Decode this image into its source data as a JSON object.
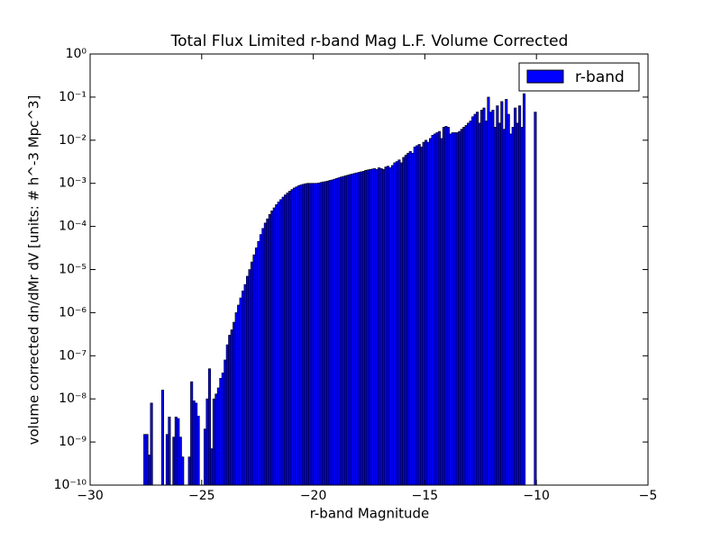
{
  "chart_data": {
    "type": "histogram",
    "title": "Total Flux Limited r-band Mag L.F. Volume Corrected",
    "xlabel": "r-band Magnitude",
    "ylabel": "volume corrected dn/dMr dV [units: # h^-3 Mpc^3]",
    "log_y": true,
    "legend": "upper right",
    "xlim": [
      -30,
      -5
    ],
    "xticks": [
      {
        "value": -30,
        "label": "−30"
      },
      {
        "value": -25,
        "label": "−25"
      },
      {
        "value": -20,
        "label": "−20"
      },
      {
        "value": -15,
        "label": "−15"
      },
      {
        "value": -10,
        "label": "−10"
      },
      {
        "value": -5,
        "label": "−5"
      }
    ],
    "ylim": [
      1e-10,
      1
    ],
    "yticks": [
      {
        "value": 1e-10,
        "label": "10⁻¹⁰"
      },
      {
        "value": 1e-09,
        "label": "10⁻⁹"
      },
      {
        "value": 1e-08,
        "label": "10⁻⁸"
      },
      {
        "value": 1e-07,
        "label": "10⁻⁷"
      },
      {
        "value": 1e-06,
        "label": "10⁻⁶"
      },
      {
        "value": 1e-05,
        "label": "10⁻⁵"
      },
      {
        "value": 0.0001,
        "label": "10⁻⁴"
      },
      {
        "value": 0.001,
        "label": "10⁻³"
      },
      {
        "value": 0.01,
        "label": "10⁻²"
      },
      {
        "value": 0.1,
        "label": "10⁻¹"
      },
      {
        "value": 1,
        "label": "10⁰"
      }
    ],
    "bins": [
      -27.6,
      -27.5,
      -27.4,
      -27.3,
      -27.2,
      -27.1,
      -27.0,
      -26.9,
      -26.8,
      -26.7,
      -26.6,
      -26.5,
      -26.4,
      -26.3,
      -26.2,
      -26.1,
      -26.0,
      -25.9,
      -25.8,
      -25.7,
      -25.6,
      -25.5,
      -25.4,
      -25.3,
      -25.2,
      -25.1,
      -25.0,
      -24.9,
      -24.8,
      -24.7,
      -24.6,
      -24.5,
      -24.4,
      -24.3,
      -24.2,
      -24.1,
      -24.0,
      -23.9,
      -23.8,
      -23.7,
      -23.6,
      -23.5,
      -23.4,
      -23.3,
      -23.2,
      -23.1,
      -23.0,
      -22.9,
      -22.8,
      -22.7,
      -22.6,
      -22.5,
      -22.4,
      -22.3,
      -22.2,
      -22.1,
      -22.0,
      -21.9,
      -21.8,
      -21.7,
      -21.6,
      -21.5,
      -21.4,
      -21.3,
      -21.2,
      -21.1,
      -21.0,
      -20.9,
      -20.8,
      -20.7,
      -20.6,
      -20.5,
      -20.4,
      -20.3,
      -20.2,
      -20.1,
      -20.0,
      -19.9,
      -19.8,
      -19.7,
      -19.6,
      -19.5,
      -19.4,
      -19.3,
      -19.2,
      -19.1,
      -19.0,
      -18.9,
      -18.8,
      -18.7,
      -18.6,
      -18.5,
      -18.4,
      -18.3,
      -18.2,
      -18.1,
      -18.0,
      -17.9,
      -17.8,
      -17.7,
      -17.6,
      -17.5,
      -17.4,
      -17.3,
      -17.2,
      -17.1,
      -17.0,
      -16.9,
      -16.8,
      -16.7,
      -16.6,
      -16.5,
      -16.4,
      -16.3,
      -16.2,
      -16.1,
      -16.0,
      -15.9,
      -15.8,
      -15.7,
      -15.6,
      -15.5,
      -15.4,
      -15.3,
      -15.2,
      -15.1,
      -15.0,
      -14.9,
      -14.8,
      -14.7,
      -14.6,
      -14.5,
      -14.4,
      -14.3,
      -14.2,
      -14.1,
      -14.0,
      -13.9,
      -13.8,
      -13.7,
      -13.6,
      -13.5,
      -13.4,
      -13.3,
      -13.2,
      -13.1,
      -13.0,
      -12.9,
      -12.8,
      -12.7,
      -12.6,
      -12.5,
      -12.4,
      -12.3,
      -12.2,
      -12.1,
      -12.0,
      -11.9,
      -11.8,
      -11.7,
      -11.6,
      -11.5,
      -11.4,
      -11.3,
      -11.2,
      -11.1,
      -11.0,
      -10.9,
      -10.8,
      -10.7,
      -10.6,
      -10.5,
      -10.4,
      -10.3,
      -10.2,
      -10.1,
      -10.0
    ],
    "series": [
      {
        "name": "r-band",
        "color": "#0000ff",
        "values": [
          1.5e-09,
          1.5e-09,
          5e-10,
          8e-09,
          null,
          null,
          null,
          null,
          1.6e-08,
          null,
          1.5e-09,
          3.8e-09,
          null,
          1.3e-09,
          3.8e-09,
          3.5e-09,
          1.3e-09,
          4.5e-10,
          null,
          null,
          4.5e-10,
          2.5e-08,
          9e-09,
          8e-09,
          4e-09,
          null,
          null,
          2e-09,
          1e-08,
          5e-08,
          7e-10,
          1e-08,
          1.3e-08,
          1.8e-08,
          3e-08,
          4e-08,
          8e-08,
          1.8e-07,
          3e-07,
          4e-07,
          6e-07,
          1e-06,
          1.5e-06,
          2.2e-06,
          3.2e-06,
          4.5e-06,
          7e-06,
          1e-05,
          1.5e-05,
          2.2e-05,
          3.2e-05,
          4.5e-05,
          6.5e-05,
          9e-05,
          0.00012,
          0.00015,
          0.00019,
          0.00023,
          0.00027,
          0.00032,
          0.00037,
          0.00042,
          0.00048,
          0.00054,
          0.0006,
          0.00066,
          0.00072,
          0.00078,
          0.00083,
          0.00088,
          0.00092,
          0.00095,
          0.00098,
          0.001,
          0.001,
          0.001,
          0.001,
          0.001,
          0.00102,
          0.00105,
          0.00108,
          0.0011,
          0.00113,
          0.00117,
          0.0012,
          0.00125,
          0.0013,
          0.00135,
          0.0014,
          0.00145,
          0.0015,
          0.00155,
          0.0016,
          0.00165,
          0.0017,
          0.00175,
          0.0018,
          0.00185,
          0.0019,
          0.002,
          0.00205,
          0.0021,
          0.00215,
          0.0022,
          0.0021,
          0.0023,
          0.0022,
          0.0021,
          0.0024,
          0.0025,
          0.0023,
          0.0026,
          0.003,
          0.0032,
          0.0035,
          0.003,
          0.004,
          0.0045,
          0.005,
          0.0055,
          0.005,
          0.007,
          0.0075,
          0.008,
          0.007,
          0.009,
          0.01,
          0.009,
          0.011,
          0.013,
          0.014,
          0.015,
          0.016,
          0.011,
          0.02,
          0.021,
          0.02,
          0.014,
          0.015,
          0.015,
          0.015,
          0.016,
          0.018,
          0.02,
          0.022,
          0.025,
          0.028,
          0.035,
          0.04,
          0.045,
          0.025,
          0.05,
          0.056,
          0.028,
          0.1,
          0.045,
          0.05,
          0.02,
          0.063,
          0.025,
          0.079,
          0.018,
          0.089,
          0.04,
          0.014,
          0.02,
          0.056,
          0.025,
          0.063,
          0.02,
          0.12,
          null,
          null,
          null,
          null,
          0.045
        ]
      }
    ]
  }
}
